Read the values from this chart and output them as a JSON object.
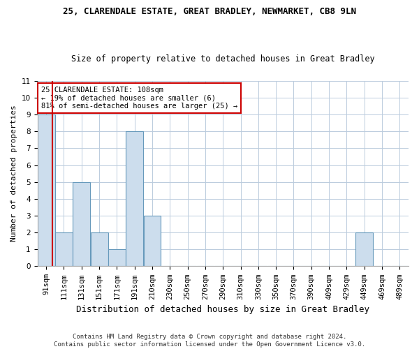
{
  "title1": "25, CLARENDALE ESTATE, GREAT BRADLEY, NEWMARKET, CB8 9LN",
  "title2": "Size of property relative to detached houses in Great Bradley",
  "xlabel": "Distribution of detached houses by size in Great Bradley",
  "ylabel": "Number of detached properties",
  "footnote": "Contains HM Land Registry data © Crown copyright and database right 2024.\nContains public sector information licensed under the Open Government Licence v3.0.",
  "bin_labels": [
    "91sqm",
    "111sqm",
    "131sqm",
    "151sqm",
    "171sqm",
    "191sqm",
    "210sqm",
    "230sqm",
    "250sqm",
    "270sqm",
    "290sqm",
    "310sqm",
    "330sqm",
    "350sqm",
    "370sqm",
    "390sqm",
    "409sqm",
    "429sqm",
    "449sqm",
    "469sqm",
    "489sqm"
  ],
  "bar_values": [
    9,
    2,
    5,
    2,
    1,
    8,
    3,
    0,
    0,
    0,
    0,
    0,
    0,
    0,
    0,
    0,
    0,
    0,
    2,
    0,
    0
  ],
  "bar_color": "#ccdded",
  "bar_edge_color": "#6699bb",
  "vline_color": "#cc0000",
  "vline_index": 0.85,
  "ylim": [
    0,
    11
  ],
  "yticks": [
    0,
    1,
    2,
    3,
    4,
    5,
    6,
    7,
    8,
    9,
    10,
    11
  ],
  "annotation_text": "25 CLARENDALE ESTATE: 108sqm\n← 19% of detached houses are smaller (6)\n81% of semi-detached houses are larger (25) →",
  "annotation_box_color": "#cc0000",
  "title1_fontsize": 9,
  "title2_fontsize": 8.5,
  "ylabel_fontsize": 8,
  "xlabel_fontsize": 9,
  "tick_fontsize": 7.5,
  "footnote_fontsize": 6.5
}
